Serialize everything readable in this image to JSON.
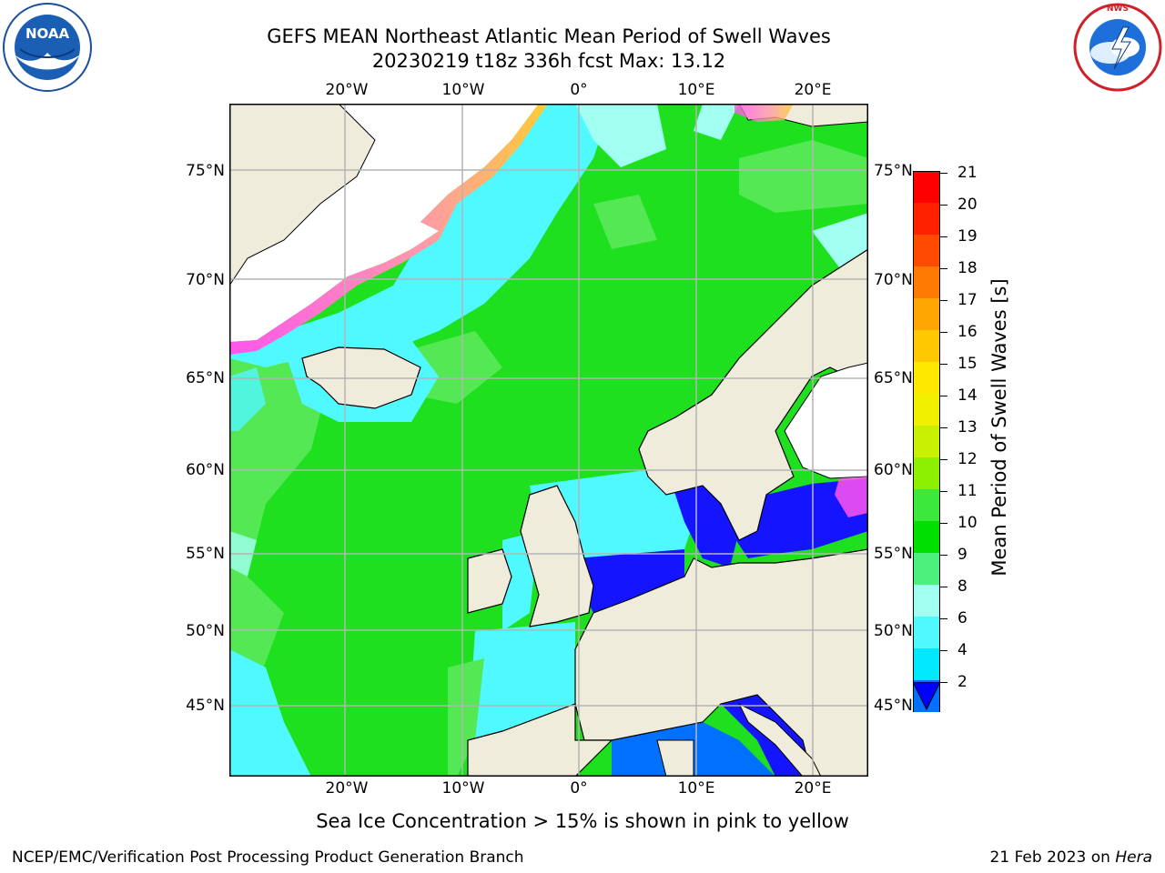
{
  "header": {
    "title_line1": "GEFS MEAN Northeast Atlantic Mean Period of Swell Waves",
    "title_line2": "20230219 t18z 336h fcst   Max: 13.12"
  },
  "logos": {
    "noaa_text": "NOAA",
    "noaa_ring_text": "NATIONAL OCEANIC AND ATMOSPHERIC ADMINISTRATION · U.S. DEPARTMENT OF COMMERCE",
    "nws_ring_text": "NATIONAL WEATHER SERVICE"
  },
  "map": {
    "lon_labels_top": [
      "20°W",
      "10°W",
      "0°",
      "10°E",
      "20°E"
    ],
    "lon_labels_bottom": [
      "20°W",
      "10°W",
      "0°",
      "10°E",
      "20°E"
    ],
    "lat_labels_left": [
      "75°N",
      "70°N",
      "65°N",
      "60°N",
      "55°N",
      "50°N",
      "45°N"
    ],
    "lat_labels_right": [
      "75°N",
      "70°N",
      "65°N",
      "60°N",
      "55°N",
      "50°N",
      "45°N"
    ],
    "colors": {
      "ocean_cyan": "#5af5f5",
      "green_light": "#55e855",
      "green": "#1ee01e",
      "blue": "#1414ff",
      "land": "#efecdc",
      "ice_pink": "#ff55ee",
      "ice_yellow": "#ffcc33"
    }
  },
  "colorbar": {
    "label": "Mean Period of Swell Waves [s]",
    "ticks": [
      "21",
      "20",
      "19",
      "18",
      "17",
      "16",
      "15",
      "14",
      "13",
      "12",
      "11",
      "10",
      "9",
      "8",
      "6",
      "4",
      "2"
    ],
    "colors": [
      "#ff0000",
      "#ff2000",
      "#ff4a00",
      "#ff7a00",
      "#ffa600",
      "#ffc800",
      "#ffe800",
      "#f0f000",
      "#c8f000",
      "#8cf000",
      "#3ce83c",
      "#00e000",
      "#4cf07c",
      "#a0fff0",
      "#50f8ff",
      "#00e8ff",
      "#0070ff"
    ],
    "extend_color": "#0000ff"
  },
  "footer": {
    "note": "Sea Ice Concentration > 15% is shown in pink to yellow",
    "left": "NCEP/EMC/Verification Post Processing Product Generation Branch",
    "right_date": "21 Feb 2023 on ",
    "right_host": "Hera"
  }
}
